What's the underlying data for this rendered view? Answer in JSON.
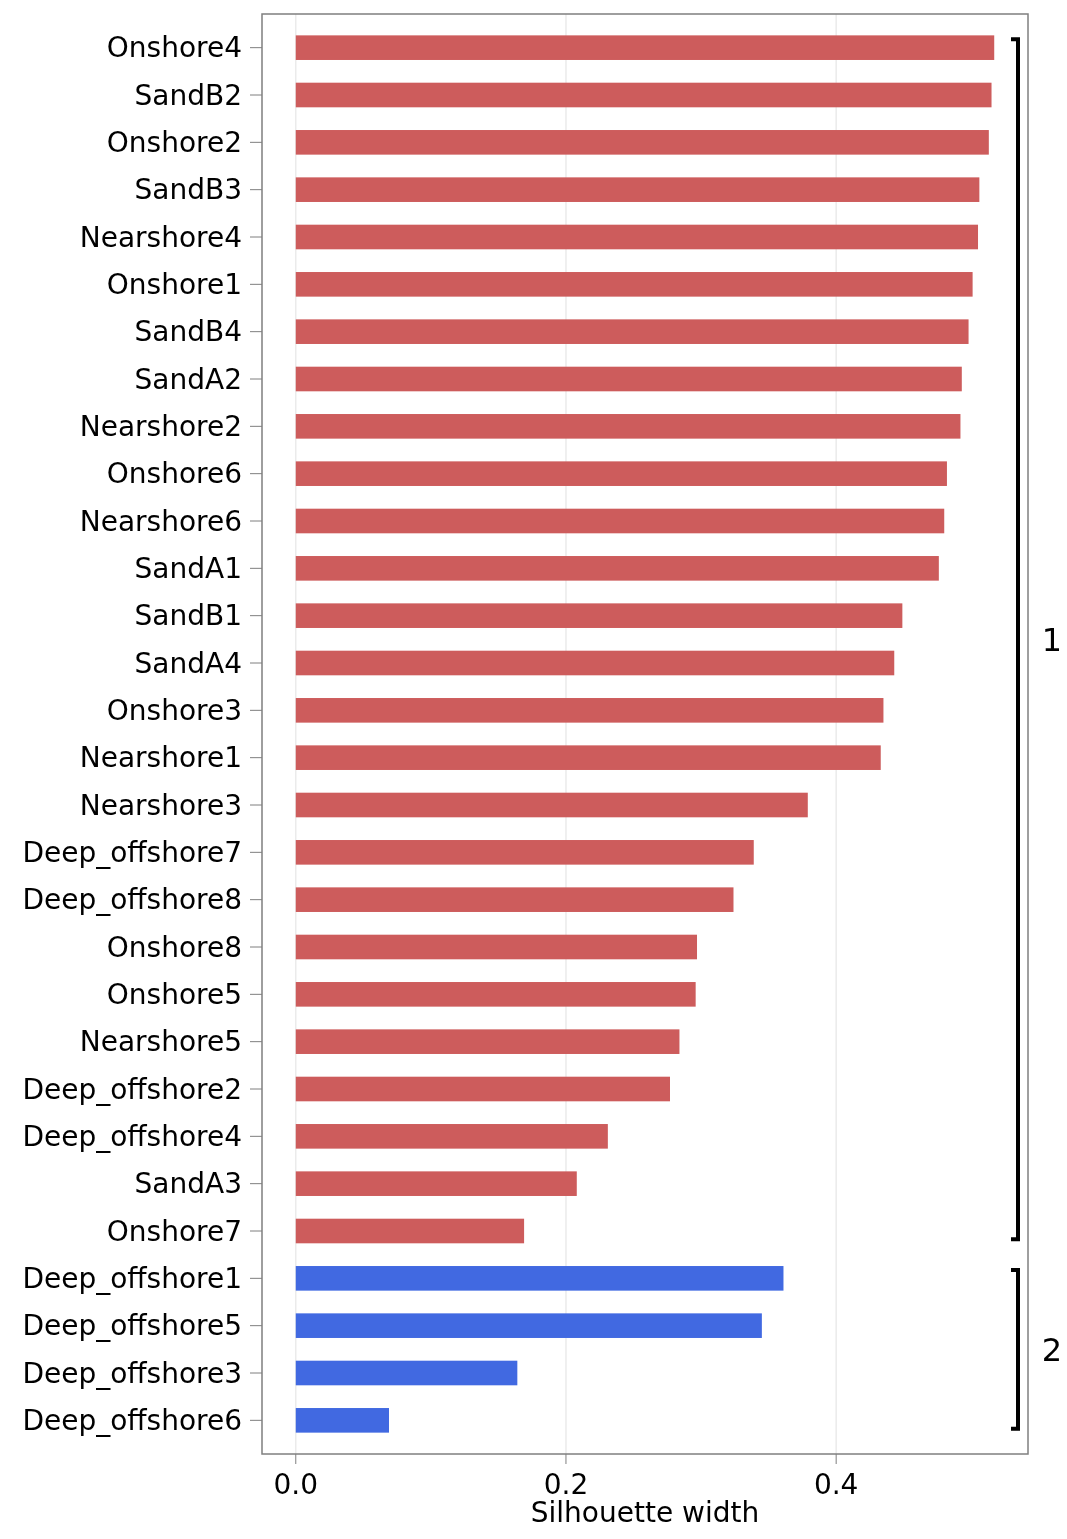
{
  "chart_data": {
    "type": "bar",
    "orientation": "horizontal",
    "xlabel": "Silhouette width",
    "categories": [
      "Onshore4",
      "SandB2",
      "Onshore2",
      "SandB3",
      "Nearshore4",
      "Onshore1",
      "SandB4",
      "SandA2",
      "Nearshore2",
      "Onshore6",
      "Nearshore6",
      "SandA1",
      "SandB1",
      "SandA4",
      "Onshore3",
      "Nearshore1",
      "Nearshore3",
      "Deep_offshore7",
      "Deep_offshore8",
      "Onshore8",
      "Onshore5",
      "Nearshore5",
      "Deep_offshore2",
      "Deep_offshore4",
      "SandA3",
      "Onshore7",
      "Deep_offshore1",
      "Deep_offshore5",
      "Deep_offshore3",
      "Deep_offshore6"
    ],
    "values": [
      0.517,
      0.515,
      0.513,
      0.506,
      0.505,
      0.501,
      0.498,
      0.493,
      0.492,
      0.482,
      0.48,
      0.476,
      0.449,
      0.443,
      0.435,
      0.433,
      0.379,
      0.339,
      0.324,
      0.297,
      0.296,
      0.284,
      0.277,
      0.231,
      0.208,
      0.169,
      0.361,
      0.345,
      0.164,
      0.069
    ],
    "colors": [
      "#cd5c5c",
      "#cd5c5c",
      "#cd5c5c",
      "#cd5c5c",
      "#cd5c5c",
      "#cd5c5c",
      "#cd5c5c",
      "#cd5c5c",
      "#cd5c5c",
      "#cd5c5c",
      "#cd5c5c",
      "#cd5c5c",
      "#cd5c5c",
      "#cd5c5c",
      "#cd5c5c",
      "#cd5c5c",
      "#cd5c5c",
      "#cd5c5c",
      "#cd5c5c",
      "#cd5c5c",
      "#cd5c5c",
      "#cd5c5c",
      "#cd5c5c",
      "#cd5c5c",
      "#cd5c5c",
      "#cd5c5c",
      "#4169e1",
      "#4169e1",
      "#4169e1",
      "#4169e1"
    ],
    "xlim": [
      -0.025,
      0.542
    ],
    "xticks": [
      {
        "value": 0,
        "label": "0.0"
      },
      0.2,
      0.4
    ],
    "grid": "x",
    "annotations": [
      "1",
      "2"
    ]
  }
}
